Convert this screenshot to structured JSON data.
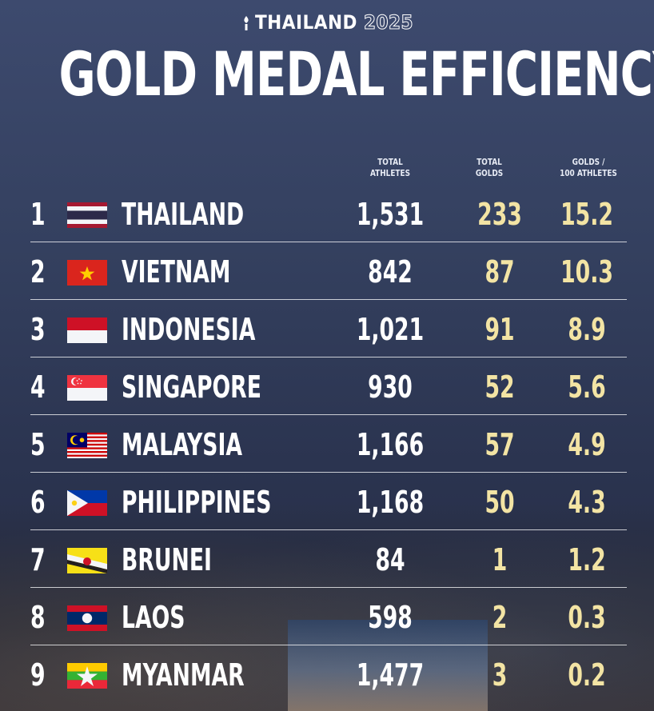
{
  "brand": {
    "name": "THAILAND",
    "year": "2025"
  },
  "title": "GOLD MEDAL EFFICIENCY",
  "columns": {
    "athletes_line1": "TOTAL",
    "athletes_line2": "ATHLETES",
    "golds_line1": "TOTAL",
    "golds_line2": "GOLDS",
    "eff_line1": "GOLDS /",
    "eff_line2": "100 ATHLETES"
  },
  "rows": [
    {
      "rank": "1",
      "country": "THAILAND",
      "athletes": "1,531",
      "golds": "233",
      "eff": "15.2",
      "flag": "thailand-flag"
    },
    {
      "rank": "2",
      "country": "VIETNAM",
      "athletes": "842",
      "golds": "87",
      "eff": "10.3",
      "flag": "vietnam-flag"
    },
    {
      "rank": "3",
      "country": "INDONESIA",
      "athletes": "1,021",
      "golds": "91",
      "eff": "8.9",
      "flag": "indonesia-flag"
    },
    {
      "rank": "4",
      "country": "SINGAPORE",
      "athletes": "930",
      "golds": "52",
      "eff": "5.6",
      "flag": "singapore-flag"
    },
    {
      "rank": "5",
      "country": "MALAYSIA",
      "athletes": "1,166",
      "golds": "57",
      "eff": "4.9",
      "flag": "malaysia-flag"
    },
    {
      "rank": "6",
      "country": "PHILIPPINES",
      "athletes": "1,168",
      "golds": "50",
      "eff": "4.3",
      "flag": "philippines-flag"
    },
    {
      "rank": "7",
      "country": "BRUNEI",
      "athletes": "84",
      "golds": "1",
      "eff": "1.2",
      "flag": "brunei-flag"
    },
    {
      "rank": "8",
      "country": "LAOS",
      "athletes": "598",
      "golds": "2",
      "eff": "0.3",
      "flag": "laos-flag"
    },
    {
      "rank": "9",
      "country": "MYANMAR",
      "athletes": "1,477",
      "golds": "3",
      "eff": "0.2",
      "flag": "myanmar-flag"
    }
  ],
  "chart_data": {
    "type": "table",
    "title": "GOLD MEDAL EFFICIENCY",
    "columns": [
      "TOTAL ATHLETES",
      "TOTAL GOLDS",
      "GOLDS / 100 ATHLETES"
    ],
    "categories": [
      "THAILAND",
      "VIETNAM",
      "INDONESIA",
      "SINGAPORE",
      "MALAYSIA",
      "PHILIPPINES",
      "BRUNEI",
      "LAOS",
      "MYANMAR"
    ],
    "series": [
      {
        "name": "TOTAL ATHLETES",
        "values": [
          1531,
          842,
          1021,
          930,
          1166,
          1168,
          84,
          598,
          1477
        ]
      },
      {
        "name": "TOTAL GOLDS",
        "values": [
          233,
          87,
          91,
          52,
          57,
          50,
          1,
          2,
          3
        ]
      },
      {
        "name": "GOLDS / 100 ATHLETES",
        "values": [
          15.2,
          10.3,
          8.9,
          5.6,
          4.9,
          4.3,
          1.2,
          0.3,
          0.2
        ]
      }
    ]
  },
  "colors": {
    "background": "#34405f",
    "accent_gold": "#f3e4a4",
    "text": "#ffffff"
  }
}
